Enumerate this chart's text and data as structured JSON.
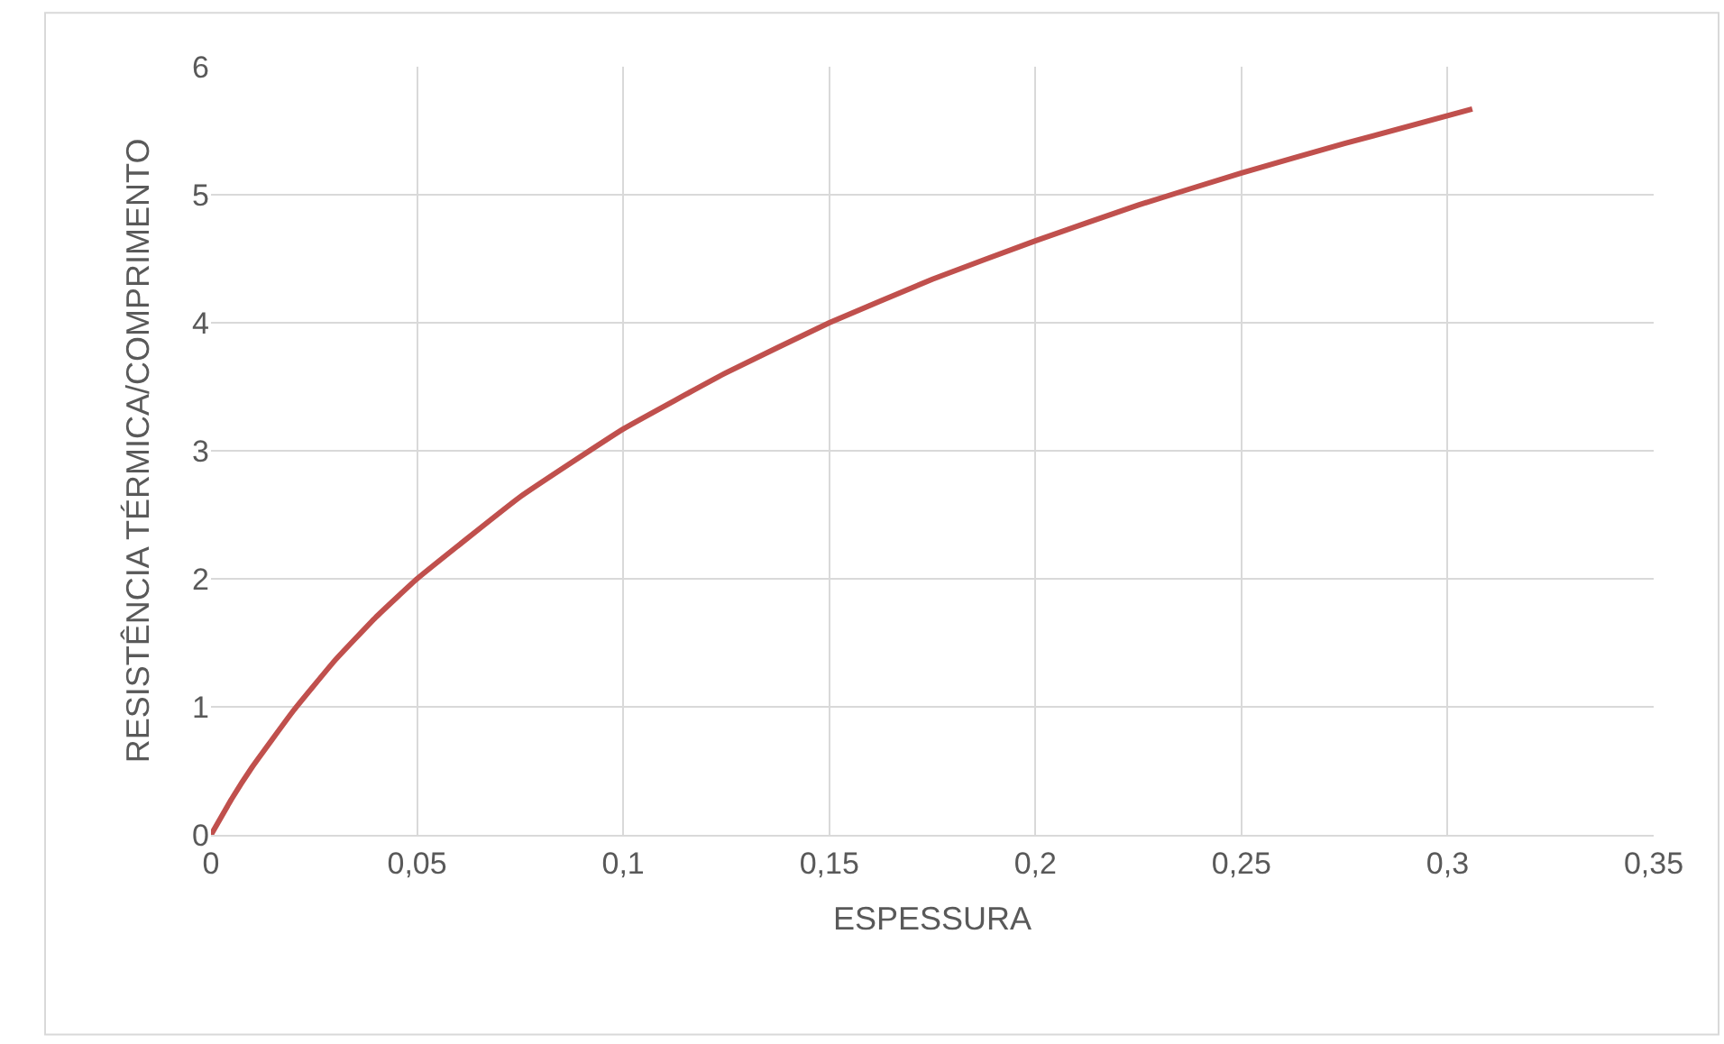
{
  "chart_data": {
    "type": "line",
    "xlabel": "ESPESSURA",
    "ylabel": "RESISTÊNCIA TÉRMICA/COMPRIMENTO",
    "x": [
      0,
      0.005,
      0.01,
      0.02,
      0.03,
      0.04,
      0.05,
      0.075,
      0.1,
      0.125,
      0.15,
      0.175,
      0.2,
      0.225,
      0.25,
      0.275,
      0.306
    ],
    "series": [
      {
        "color": "#c0504d",
        "values": [
          0,
          0.28,
          0.53,
          0.97,
          1.36,
          1.7,
          2.0,
          2.64,
          3.17,
          3.61,
          4.0,
          4.34,
          4.64,
          4.92,
          5.17,
          5.4,
          5.67
        ]
      }
    ],
    "xlim": [
      0,
      0.35
    ],
    "xticks": [
      0,
      {
        "value": 0.05,
        "label": "0,05"
      },
      {
        "value": 0.1,
        "label": "0,1"
      },
      {
        "value": 0.15,
        "label": "0,15"
      },
      {
        "value": 0.2,
        "label": "0,2"
      },
      {
        "value": 0.25,
        "label": "0,25"
      },
      {
        "value": 0.3,
        "label": "0,3"
      },
      {
        "value": 0.35,
        "label": "0,35"
      }
    ],
    "ylim": [
      0,
      6
    ],
    "yticks": [
      0,
      1,
      2,
      3,
      4,
      5,
      6
    ],
    "grid": true,
    "marker": "none",
    "line_style": "solid"
  }
}
